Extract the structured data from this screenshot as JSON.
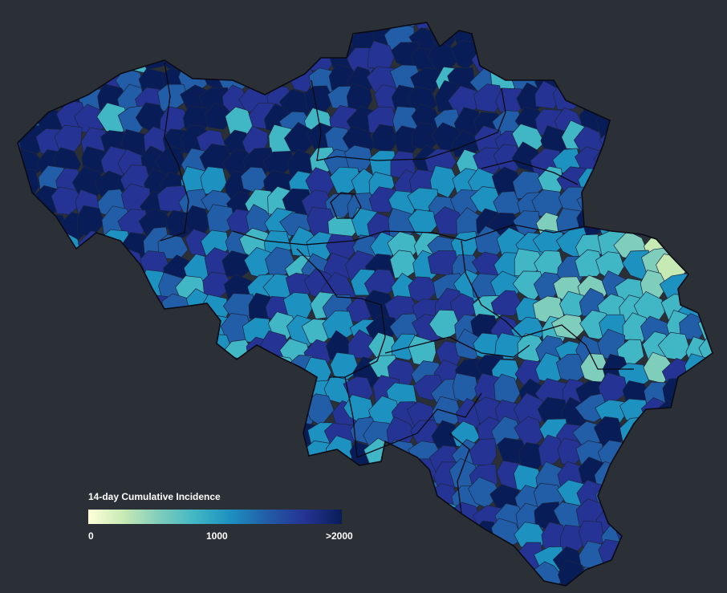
{
  "background": "#2b3036",
  "legend": {
    "title": "14-day Cumulative Incidence",
    "tick_min": "0",
    "tick_mid": "1000",
    "tick_max": ">2000",
    "colors": [
      "#ffffd9",
      "#c7e9b4",
      "#7fcdbb",
      "#41b6c4",
      "#1d91c0",
      "#225ea8",
      "#253494",
      "#081d58"
    ]
  },
  "map": {
    "border_color": "#0a0a14",
    "municipality_stroke": "#1b2540"
  }
}
